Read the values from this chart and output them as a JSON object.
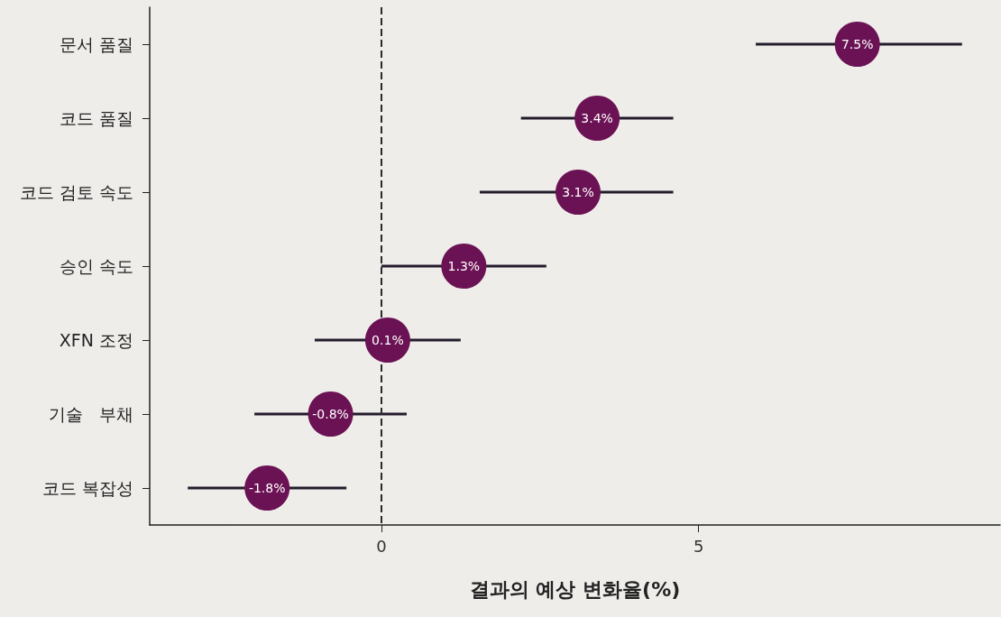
{
  "chart_data": {
    "type": "scatter",
    "orientation": "horizontal",
    "xlabel": "결과의 예상 변화율(%)",
    "categories": [
      "문서 품질",
      "코드 품질",
      "코드 검토 속도",
      "승인 속도",
      "XFN 조정",
      "기술   부채",
      "코드 복잡성"
    ],
    "values": [
      7.5,
      3.4,
      3.1,
      1.3,
      0.1,
      -0.8,
      -1.8
    ],
    "value_labels": [
      "7.5%",
      "3.4%",
      "3.1%",
      "1.3%",
      "0.1%",
      "-0.8%",
      "-1.8%"
    ],
    "errors": [
      [
        5.9,
        9.15
      ],
      [
        2.2,
        4.6
      ],
      [
        1.55,
        4.6
      ],
      [
        0,
        2.6
      ],
      [
        -1.05,
        1.25
      ],
      [
        -2.0,
        0.4
      ],
      [
        -3.05,
        -0.55
      ]
    ],
    "color": "#6b1254",
    "marker": "circle",
    "xlim": [
      -3.65,
      9.75
    ],
    "xticks": [
      0,
      5
    ],
    "ref_lines": [
      {
        "axis": "x",
        "value": 0,
        "label": null,
        "line_style": "dashed",
        "color": "#2a2a2a"
      }
    ]
  }
}
